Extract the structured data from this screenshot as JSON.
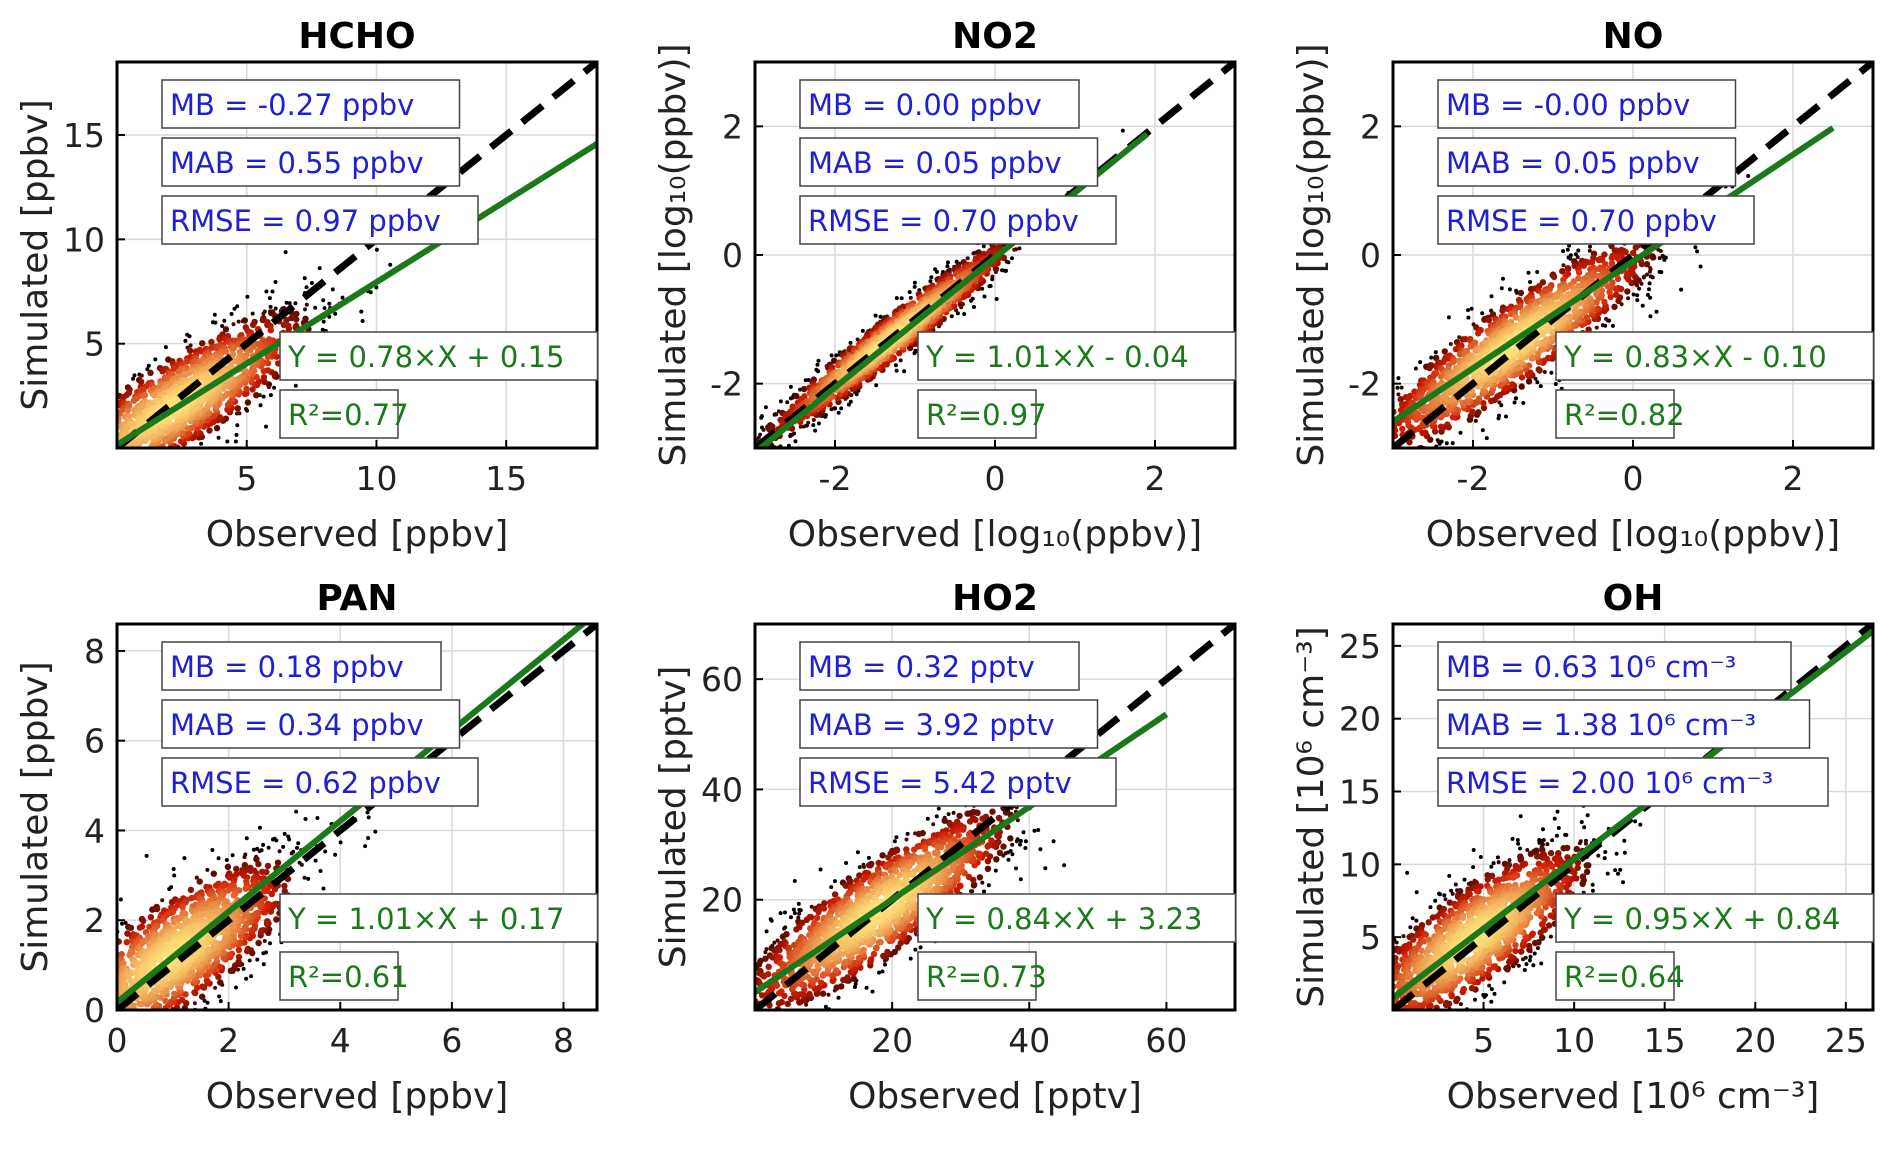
{
  "colors": {
    "one_to_one_line": "#000000",
    "fit_line": "#1a7a1a",
    "stats_text": "#1f1fd6",
    "fit_text": "#1a7a1a",
    "grid": "#d9d9d9",
    "density_low": "#000000",
    "density_mid": "#cc1a00",
    "density_high": "#ffe27a"
  },
  "chart_data": [
    {
      "type": "scatter",
      "title": "HCHO",
      "xlabel": "Observed [ppbv]",
      "ylabel": "Simulated [ppbv]",
      "xlim": [
        0,
        18.5
      ],
      "ylim": [
        0,
        18.5
      ],
      "xticks": [
        5,
        10,
        15
      ],
      "yticks": [
        5,
        10,
        15
      ],
      "xticklabels": [
        "5",
        "10",
        "15"
      ],
      "yticklabels": [
        "5",
        "10",
        "15"
      ],
      "grid": true,
      "stats": [
        "MB = -0.27 ppbv",
        "MAB = 0.55 ppbv",
        "RMSE = 0.97 ppbv"
      ],
      "fit_label": "Y = 0.78×X + 0.15",
      "r2_label": "R²=0.77",
      "fit": {
        "slope": 0.78,
        "intercept": 0.15,
        "x_range": [
          0,
          18.5
        ]
      },
      "density": {
        "center": [
          2.2,
          2.0
        ],
        "spread": [
          2.6,
          2.3
        ],
        "corr": 0.85
      }
    },
    {
      "type": "scatter",
      "title": "NO2",
      "xlabel": "Observed [log₁₀(ppbv)]",
      "ylabel": "Simulated [log₁₀(ppbv)]",
      "xlim": [
        -3,
        3
      ],
      "ylim": [
        -3,
        3
      ],
      "xticks": [
        -2,
        0,
        2
      ],
      "yticks": [
        -2,
        0,
        2
      ],
      "xticklabels": [
        "-2",
        "0",
        "2"
      ],
      "yticklabels": [
        "-2",
        "0",
        "2"
      ],
      "grid": true,
      "stats": [
        "MB = 0.00 ppbv",
        "MAB = 0.05 ppbv",
        "RMSE = 0.70 ppbv"
      ],
      "fit_label": "Y = 1.01×X - 0.04",
      "r2_label": "R²=0.97",
      "fit": {
        "slope": 1.01,
        "intercept": -0.04,
        "x_range": [
          -3,
          1.9
        ]
      },
      "density": {
        "center": [
          -1.3,
          -1.3
        ],
        "spread": [
          0.8,
          0.8
        ],
        "corr": 0.97
      }
    },
    {
      "type": "scatter",
      "title": "NO",
      "xlabel": "Observed [log₁₀(ppbv)]",
      "ylabel": "Simulated [log₁₀(ppbv)]",
      "xlim": [
        -3,
        3
      ],
      "ylim": [
        -3,
        3
      ],
      "xticks": [
        -2,
        0,
        2
      ],
      "yticks": [
        -2,
        0,
        2
      ],
      "xticklabels": [
        "-2",
        "0",
        "2"
      ],
      "yticklabels": [
        "-2",
        "0",
        "2"
      ],
      "grid": true,
      "stats": [
        "MB = -0.00 ppbv",
        "MAB = 0.05 ppbv",
        "RMSE = 0.70 ppbv"
      ],
      "fit_label": "Y = 0.83×X - 0.10",
      "r2_label": "R²=0.82",
      "fit": {
        "slope": 0.83,
        "intercept": -0.1,
        "x_range": [
          -3,
          2.5
        ]
      },
      "density": {
        "center": [
          -1.5,
          -1.4
        ],
        "spread": [
          0.9,
          0.85
        ],
        "corr": 0.9
      }
    },
    {
      "type": "scatter",
      "title": "PAN",
      "xlabel": "Observed [ppbv]",
      "ylabel": "Simulated [ppbv]",
      "xlim": [
        0,
        8.6
      ],
      "ylim": [
        0,
        8.6
      ],
      "xticks": [
        0,
        2,
        4,
        6,
        8
      ],
      "yticks": [
        0,
        2,
        4,
        6,
        8
      ],
      "xticklabels": [
        "0",
        "2",
        "4",
        "6",
        "8"
      ],
      "yticklabels": [
        "0",
        "2",
        "4",
        "6",
        "8"
      ],
      "grid": true,
      "stats": [
        "MB = 0.18 ppbv",
        "MAB = 0.34 ppbv",
        "RMSE = 0.62 ppbv"
      ],
      "fit_label": "Y = 1.01×X + 0.17",
      "r2_label": "R²=0.61",
      "fit": {
        "slope": 1.01,
        "intercept": 0.17,
        "x_range": [
          0,
          8.4
        ]
      },
      "density": {
        "center": [
          1.0,
          1.2
        ],
        "spread": [
          1.1,
          1.1
        ],
        "corr": 0.78
      }
    },
    {
      "type": "scatter",
      "title": "HO2",
      "xlabel": "Observed [pptv]",
      "ylabel": "Simulated [pptv]",
      "xlim": [
        0,
        70
      ],
      "ylim": [
        0,
        70
      ],
      "xticks": [
        20,
        40,
        60
      ],
      "yticks": [
        20,
        40,
        60
      ],
      "xticklabels": [
        "20",
        "40",
        "60"
      ],
      "yticklabels": [
        "20",
        "40",
        "60"
      ],
      "grid": true,
      "stats": [
        "MB = 0.32 pptv",
        "MAB = 3.92 pptv",
        "RMSE = 5.42 pptv"
      ],
      "fit_label": "Y = 0.84×X + 3.23",
      "r2_label": "R²=0.73",
      "fit": {
        "slope": 0.84,
        "intercept": 3.23,
        "x_range": [
          0,
          60
        ]
      },
      "density": {
        "center": [
          18,
          18
        ],
        "spread": [
          10,
          9.5
        ],
        "corr": 0.86
      }
    },
    {
      "type": "scatter",
      "title": "OH",
      "xlabel": "Observed [10⁶ cm⁻³]",
      "ylabel": "Simulated [10⁶ cm⁻³]",
      "xlim": [
        0,
        26.5
      ],
      "ylim": [
        0,
        26.5
      ],
      "xticks": [
        5,
        10,
        15,
        20,
        25
      ],
      "yticks": [
        5,
        10,
        15,
        20,
        25
      ],
      "xticklabels": [
        "5",
        "10",
        "15",
        "20",
        "25"
      ],
      "yticklabels": [
        "5",
        "10",
        "15",
        "20",
        "25"
      ],
      "grid": true,
      "stats": [
        "MB = 0.63 10⁶ cm⁻³",
        "MAB = 1.38 10⁶ cm⁻³",
        "RMSE = 2.00 10⁶ cm⁻³"
      ],
      "fit_label": "Y = 0.95×X + 0.84",
      "r2_label": "R²=0.64",
      "fit": {
        "slope": 0.95,
        "intercept": 0.84,
        "x_range": [
          0,
          26.5
        ]
      },
      "density": {
        "center": [
          4.5,
          5.0
        ],
        "spread": [
          3.2,
          3.2
        ],
        "corr": 0.8
      }
    }
  ]
}
